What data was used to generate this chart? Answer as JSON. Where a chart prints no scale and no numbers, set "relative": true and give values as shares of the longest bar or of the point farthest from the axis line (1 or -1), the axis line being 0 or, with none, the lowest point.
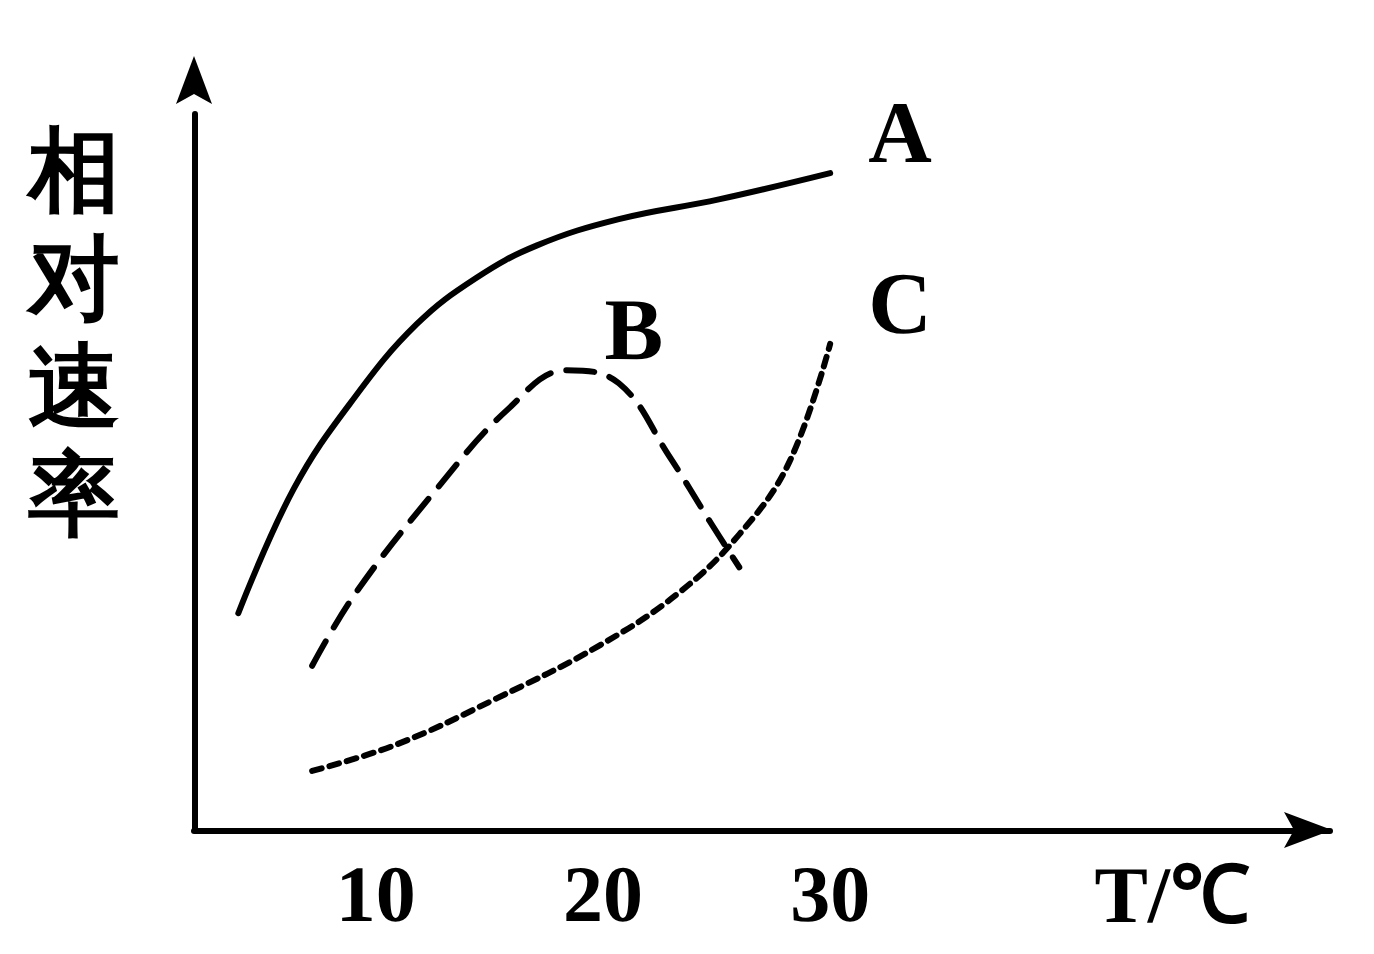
{
  "chart_data": {
    "type": "line",
    "relative": true,
    "xlabel": "T/℃",
    "ylabel": "相对速率",
    "xlim": [
      2,
      52
    ],
    "xticks": [
      10,
      20,
      30
    ],
    "grid": false,
    "legend": false,
    "marker": "none",
    "series": [
      {
        "name": "A",
        "color": "#000000",
        "line_style": "solid",
        "x": [
          3.95,
          6.4,
          9.1,
          11.8,
          14.4,
          17.1,
          20.7,
          25.1,
          30
        ],
        "values": [
          0.33,
          0.52,
          0.66,
          0.77,
          0.84,
          0.89,
          0.93,
          0.96,
          1
        ]
      },
      {
        "name": "B",
        "color": "#000000",
        "line_style": "dashed",
        "x": [
          7.2,
          9.1,
          12.7,
          15.8,
          18.4,
          20.7,
          22.9,
          24.7,
          26
        ],
        "values": [
          0.25,
          0.36,
          0.52,
          0.64,
          0.7,
          0.68,
          0.57,
          0.47,
          0.4
        ]
      },
      {
        "name": "C",
        "color": "#000000",
        "line_style": "dotted",
        "x": [
          7.2,
          10.9,
          15.3,
          19.8,
          23.3,
          26,
          28.2,
          30
        ],
        "values": [
          0.09,
          0.13,
          0.2,
          0.28,
          0.36,
          0.45,
          0.56,
          0.74
        ]
      }
    ]
  }
}
